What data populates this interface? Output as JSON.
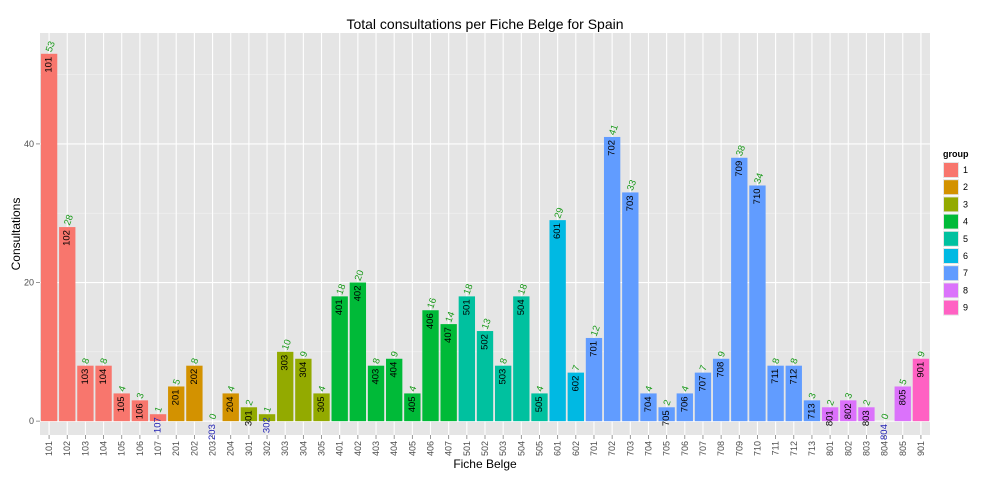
{
  "chart_data": {
    "type": "bar",
    "title": "Total consultations per Fiche Belge for Spain",
    "xlabel": "Fiche Belge",
    "ylabel": "Consultations",
    "ylim": [
      -2,
      56
    ],
    "yticks": [
      0,
      20,
      40
    ],
    "grid": true,
    "legend": {
      "title": "group",
      "placement": "right",
      "items": [
        {
          "label": "1",
          "color": "#F8766D"
        },
        {
          "label": "2",
          "color": "#D39200"
        },
        {
          "label": "3",
          "color": "#93AA00"
        },
        {
          "label": "4",
          "color": "#00BA38"
        },
        {
          "label": "5",
          "color": "#00C19F"
        },
        {
          "label": "6",
          "color": "#00B9E3"
        },
        {
          "label": "7",
          "color": "#619CFF"
        },
        {
          "label": "8",
          "color": "#DB72FB"
        },
        {
          "label": "9",
          "color": "#FF61C3"
        }
      ]
    },
    "categories": [
      "101",
      "102",
      "103",
      "104",
      "105",
      "106",
      "107",
      "201",
      "202",
      "203",
      "204",
      "301",
      "302",
      "303",
      "304",
      "305",
      "401",
      "402",
      "403",
      "404",
      "405",
      "406",
      "407",
      "501",
      "502",
      "503",
      "504",
      "505",
      "601",
      "602",
      "701",
      "702",
      "703",
      "704",
      "705",
      "706",
      "707",
      "708",
      "709",
      "710",
      "711",
      "712",
      "713",
      "801",
      "802",
      "803",
      "804",
      "805",
      "901"
    ],
    "values": [
      53,
      28,
      8,
      8,
      4,
      3,
      1,
      5,
      8,
      0,
      4,
      2,
      1,
      10,
      9,
      4,
      18,
      20,
      8,
      9,
      4,
      16,
      14,
      18,
      13,
      8,
      18,
      4,
      29,
      7,
      12,
      41,
      33,
      4,
      2,
      4,
      7,
      9,
      38,
      34,
      8,
      8,
      3,
      2,
      3,
      2,
      0,
      5,
      9
    ],
    "groups": [
      1,
      1,
      1,
      1,
      1,
      1,
      1,
      2,
      2,
      2,
      2,
      3,
      3,
      3,
      3,
      3,
      4,
      4,
      4,
      4,
      4,
      4,
      4,
      5,
      5,
      5,
      5,
      5,
      6,
      6,
      7,
      7,
      7,
      7,
      7,
      7,
      7,
      7,
      7,
      7,
      7,
      7,
      7,
      8,
      8,
      8,
      8,
      8,
      9
    ]
  }
}
